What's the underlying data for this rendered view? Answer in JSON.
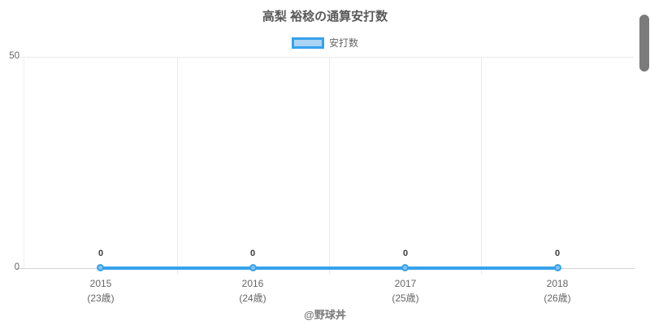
{
  "title": "高梨 裕稔の通算安打数",
  "legend": {
    "label": "安打数"
  },
  "colors": {
    "line": "#36A2EB",
    "legend_fill": "#A9D4F3",
    "grid": "#E9E9E9",
    "axis": "#D4D4D4",
    "tick_text": "#666666",
    "title_text": "#595959",
    "value_label_text": "#3C3C3C",
    "footer_text": "#7A7A7A",
    "scrollbar": "#7B7B7B"
  },
  "y_axis": {
    "ticks": {
      "top": "50",
      "bottom": "0"
    }
  },
  "points": [
    {
      "year": "2015",
      "age": "(23歳)",
      "value": "0"
    },
    {
      "year": "2016",
      "age": "(24歳)",
      "value": "0"
    },
    {
      "year": "2017",
      "age": "(25歳)",
      "value": "0"
    },
    {
      "year": "2018",
      "age": "(26歳)",
      "value": "0"
    }
  ],
  "footer": "@野球丼",
  "chart_data": {
    "type": "line",
    "title": "高梨 裕稔の通算安打数",
    "categories": [
      "2015 (23歳)",
      "2016 (24歳)",
      "2017 (25歳)",
      "2018 (26歳)"
    ],
    "series": [
      {
        "name": "安打数",
        "values": [
          0,
          0,
          0,
          0
        ]
      }
    ],
    "xlabel": "",
    "ylabel": "",
    "ylim": [
      0,
      50
    ],
    "yticks": [
      0,
      50
    ],
    "grid": true,
    "legend_position": "top",
    "data_labels": true,
    "annotations": [
      "@野球丼"
    ]
  }
}
